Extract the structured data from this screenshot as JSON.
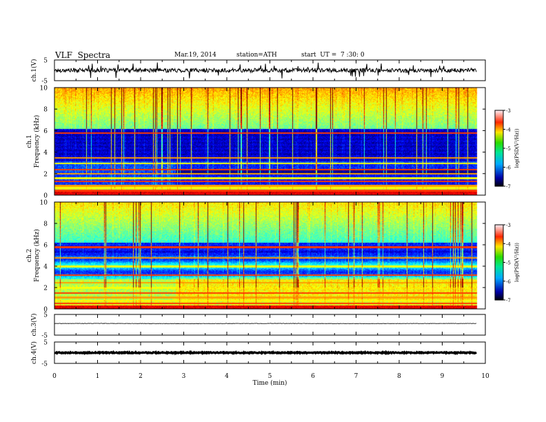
{
  "header": {
    "title": "VLF  Spectra",
    "date": "Mar.19, 2014",
    "station": "station=ATH",
    "start": "start  UT =  7 :30: 0"
  },
  "chart_data": [
    {
      "id": "ch1-waveform",
      "type": "line",
      "ylabel": "ch.1(V)",
      "ylim": [
        -5,
        5
      ],
      "y_ticks": [
        "5",
        "-5"
      ],
      "xlim": [
        0,
        10
      ],
      "data_end_min": 9.8,
      "baseline": 0,
      "noise_amplitude": 1,
      "line_color": "#000000"
    },
    {
      "id": "ch1-spectrogram",
      "type": "heatmap",
      "ylabel": "Frequency (kHz)",
      "channel_label": "ch.1",
      "ylim": [
        0,
        10
      ],
      "y_ticks": [
        "0",
        "2",
        "4",
        "6",
        "8",
        "10"
      ],
      "xlim": [
        0,
        10
      ],
      "data_end_min": 9.8,
      "colorbar": {
        "label": "log(PSD(V²/Hz))",
        "range": [
          -7,
          -3
        ],
        "ticks": [
          "-3",
          "-4",
          "-5",
          "-6",
          "-7"
        ]
      },
      "bands_khz": [
        0.1,
        0.25,
        0.45,
        0.7,
        0.9,
        1.3,
        1.6,
        2.0,
        2.4,
        3.0,
        3.5,
        5.8
      ],
      "change_point_min": 2.8
    },
    {
      "id": "ch2-spectrogram",
      "type": "heatmap",
      "ylabel": "Frequency (kHz)",
      "channel_label": "ch.2",
      "ylim": [
        0,
        10
      ],
      "y_ticks": [
        "0",
        "2",
        "4",
        "6",
        "8",
        "10"
      ],
      "xlim": [
        0,
        10
      ],
      "data_end_min": 9.8,
      "colorbar": {
        "label": "log(PSD(V²/Hz))",
        "range": [
          -7,
          -3
        ],
        "ticks": [
          "-3",
          "-4",
          "-5",
          "-6",
          "-7"
        ]
      },
      "bands_khz": [
        0.1,
        0.3,
        0.55,
        0.8,
        1.1,
        1.5,
        2.0,
        2.5,
        3.2,
        4.0,
        4.8,
        5.8
      ],
      "change_point_min": 2.8
    },
    {
      "id": "ch3-waveform",
      "type": "line",
      "ylabel": "ch.3(V)",
      "ylim": [
        -5,
        5
      ],
      "y_ticks": [
        "5",
        "-5"
      ],
      "xlim": [
        0,
        10
      ],
      "data_end_min": 9.8,
      "baseline": 0,
      "noise_amplitude": 0.1,
      "line_color": "#000000"
    },
    {
      "id": "ch4-waveform",
      "type": "line",
      "ylabel": "ch.4(V)",
      "ylim": [
        -5,
        5
      ],
      "y_ticks": [
        "5",
        "-5"
      ],
      "xlim": [
        0,
        10
      ],
      "data_end_min": 9.8,
      "baseline": 0,
      "noise_amplitude": 0.12,
      "line_color": "#000000"
    }
  ],
  "x_axis": {
    "label": "Time  (min)",
    "ticks": [
      "0",
      "1",
      "2",
      "3",
      "4",
      "5",
      "6",
      "7",
      "8",
      "9",
      "10"
    ]
  }
}
